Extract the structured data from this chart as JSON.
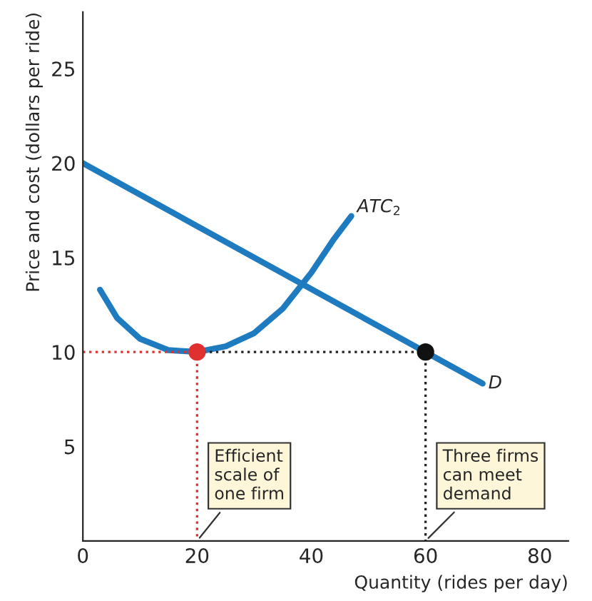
{
  "chart_data": {
    "type": "line",
    "xlabel": "Quantity (rides per day)",
    "ylabel": "Price and cost (dollars per ride)",
    "xlim": [
      0,
      85
    ],
    "ylim": [
      0,
      28
    ],
    "xticks": [
      0,
      20,
      40,
      60,
      80
    ],
    "yticks": [
      5,
      10,
      15,
      20,
      25
    ],
    "grid": false,
    "legend": false,
    "series": [
      {
        "name": "D",
        "color": "#1f7bbf",
        "x": [
          0,
          70
        ],
        "values": [
          20,
          8.33
        ]
      },
      {
        "name": "ATC$_{2}$",
        "color": "#1f7bbf",
        "x": [
          3,
          6,
          10,
          15,
          20,
          25,
          30,
          35,
          40,
          44,
          47
        ],
        "values": [
          13.3,
          11.8,
          10.7,
          10.1,
          10,
          10.3,
          11,
          12.3,
          14.2,
          16,
          17.2
        ]
      },
      {
        "type": "line",
        "line_style": "dotted",
        "color": "#e03030",
        "x": [
          0,
          20,
          20
        ],
        "values": [
          10,
          10,
          0
        ]
      },
      {
        "type": "line",
        "line_style": "dotted",
        "color": "#222222",
        "x": [
          20,
          60,
          60
        ],
        "values": [
          10,
          10,
          0
        ]
      },
      {
        "type": "scatter",
        "color": "#e03030",
        "x": [
          20
        ],
        "values": [
          10
        ]
      },
      {
        "type": "scatter",
        "color": "#111111",
        "x": [
          60
        ],
        "values": [
          10
        ]
      }
    ],
    "annotations": [
      {
        "text": "Efficient\nscale of\none firm",
        "x": 20,
        "y": 0
      },
      {
        "text": "Three firms\ncan meet\ndemand",
        "x": 60,
        "y": 0
      }
    ]
  }
}
